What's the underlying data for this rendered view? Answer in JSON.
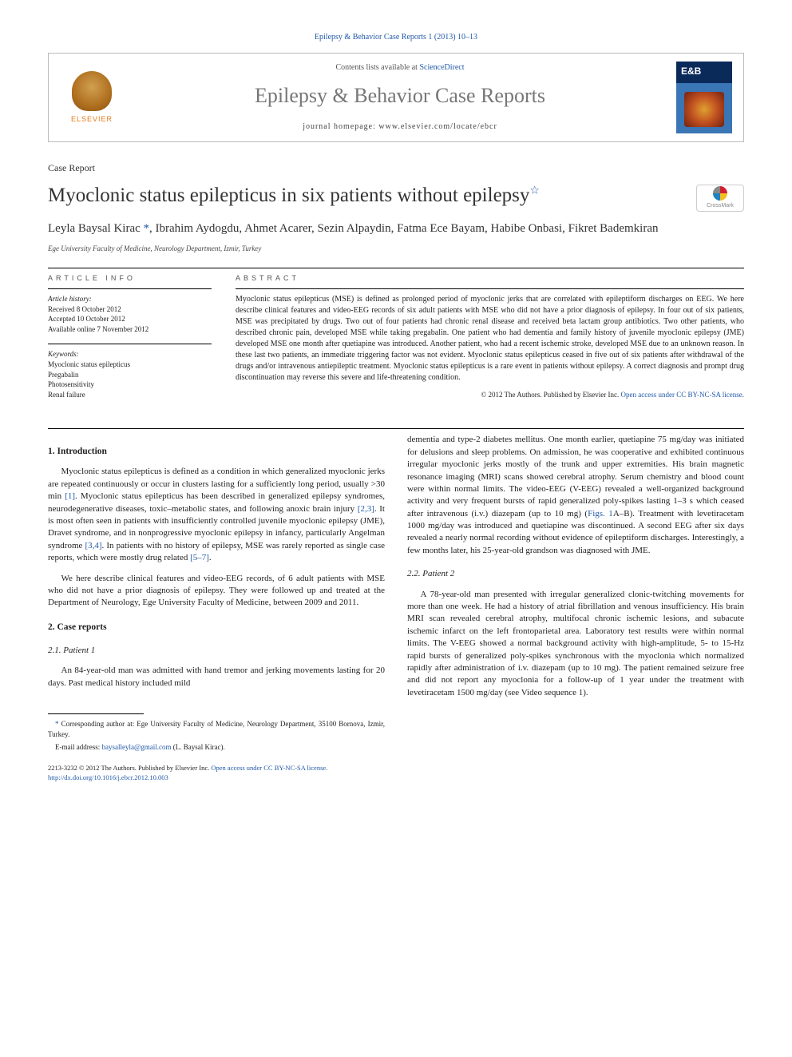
{
  "top_link": "Epilepsy & Behavior Case Reports 1 (2013) 10–13",
  "banner": {
    "contents_prefix": "Contents lists available at ",
    "contents_link": "ScienceDirect",
    "journal_name": "Epilepsy & Behavior Case Reports",
    "homepage_prefix": "journal homepage: ",
    "homepage": "www.elsevier.com/locate/ebcr",
    "elsevier": "ELSEVIER",
    "cover_badge": "E&B"
  },
  "article_type": "Case Report",
  "title": "Myoclonic status epilepticus in six patients without epilepsy",
  "crossmark": "CrossMark",
  "authors": "Leyla Baysal Kirac *, Ibrahim Aydogdu, Ahmet Acarer, Sezin Alpaydin, Fatma Ece Bayam, Habibe Onbasi, Fikret Bademkiran",
  "affiliation": "Ege University Faculty of Medicine, Neurology Department, Izmir, Turkey",
  "info": {
    "head": "ARTICLE INFO",
    "history_label": "Article history:",
    "received": "Received 8 October 2012",
    "accepted": "Accepted 10 October 2012",
    "online": "Available online 7 November 2012",
    "keywords_label": "Keywords:",
    "keywords": [
      "Myoclonic status epilepticus",
      "Pregabalin",
      "Photosensitivity",
      "Renal failure"
    ]
  },
  "abstract": {
    "head": "ABSTRACT",
    "text": "Myoclonic status epilepticus (MSE) is defined as prolonged period of myoclonic jerks that are correlated with epileptiform discharges on EEG. We here describe clinical features and video-EEG records of six adult patients with MSE who did not have a prior diagnosis of epilepsy. In four out of six patients, MSE was precipitated by drugs. Two out of four patients had chronic renal disease and received beta lactam group antibiotics. Two other patients, who described chronic pain, developed MSE while taking pregabalin. One patient who had dementia and family history of juvenile myoclonic epilepsy (JME) developed MSE one month after quetiapine was introduced. Another patient, who had a recent ischemic stroke, developed MSE due to an unknown reason. In these last two patients, an immediate triggering factor was not evident. Myoclonic status epilepticus ceased in five out of six patients after withdrawal of the drugs and/or intravenous antiepileptic treatment. Myoclonic status epilepticus is a rare event in patients without epilepsy. A correct diagnosis and prompt drug discontinuation may reverse this severe and life-threatening condition.",
    "copyright": "© 2012 The Authors. Published by Elsevier Inc. ",
    "cc": "Open access under CC BY-NC-SA license."
  },
  "sections": {
    "intro_head": "1. Introduction",
    "intro_p1": "Myoclonic status epilepticus is defined as a condition in which generalized myoclonic jerks are repeated continuously or occur in clusters lasting for a sufficiently long period, usually >30 min [1]. Myoclonic status epilepticus has been described in generalized epilepsy syndromes, neurodegenerative diseases, toxic–metabolic states, and following anoxic brain injury [2,3]. It is most often seen in patients with insufficiently controlled juvenile myoclonic epilepsy (JME), Dravet syndrome, and in nonprogressive myoclonic epilepsy in infancy, particularly Angelman syndrome [3,4]. In patients with no history of epilepsy, MSE was rarely reported as single case reports, which were mostly drug related [5–7].",
    "intro_p2": "We here describe clinical features and video-EEG records, of 6 adult patients with MSE who did not have a prior diagnosis of epilepsy. They were followed up and treated at the Department of Neurology, Ege University Faculty of Medicine, between 2009 and 2011.",
    "cases_head": "2. Case reports",
    "p1_head": "2.1. Patient 1",
    "p1_text": "An 84-year-old man was admitted with hand tremor and jerking movements lasting for 20 days. Past medical history included mild",
    "p1_cont": "dementia and type-2 diabetes mellitus. One month earlier, quetiapine 75 mg/day was initiated for delusions and sleep problems. On admission, he was cooperative and exhibited continuous irregular myoclonic jerks mostly of the trunk and upper extremities. His brain magnetic resonance imaging (MRI) scans showed cerebral atrophy. Serum chemistry and blood count were within normal limits. The video-EEG (V-EEG) revealed a well-organized background activity and very frequent bursts of rapid generalized poly-spikes lasting 1–3 s which ceased after intravenous (i.v.) diazepam (up to 10 mg) (Figs. 1A–B). Treatment with levetiracetam 1000 mg/day was introduced and quetiapine was discontinued. A second EEG after six days revealed a nearly normal recording without evidence of epileptiform discharges. Interestingly, a few months later, his 25-year-old grandson was diagnosed with JME.",
    "p2_head": "2.2. Patient 2",
    "p2_text": "A 78-year-old man presented with irregular generalized clonic-twitching movements for more than one week. He had a history of atrial fibrillation and venous insufficiency. His brain MRI scan revealed cerebral atrophy, multifocal chronic ischemic lesions, and subacute ischemic infarct on the left frontoparietal area. Laboratory test results were within normal limits. The V-EEG showed a normal background activity with high-amplitude, 5- to 15-Hz rapid bursts of generalized poly-spikes synchronous with the myoclonia which normalized rapidly after administration of i.v. diazepam (up to 10 mg). The patient remained seizure free and did not report any myoclonia for a follow-up of 1 year under the treatment with levetiracetam 1500 mg/day (see Video sequence 1)."
  },
  "footnotes": {
    "corr": "* Corresponding author at: Ege University Faculty of Medicine, Neurology Department, 35100 Bornova, Izmir, Turkey.",
    "email_label": "E-mail address: ",
    "email": "baysalleyla@gmail.com",
    "email_suffix": " (L. Baysal Kirac)."
  },
  "bottom": {
    "line1": "2213-3232 © 2012 The Authors. Published by Elsevier Inc. ",
    "cc": "Open access under CC BY-NC-SA license.",
    "doi": "http://dx.doi.org/10.1016/j.ebcr.2012.10.003"
  },
  "colors": {
    "link": "#2058a8",
    "elsevier_orange": "#e67817",
    "text": "#222222",
    "muted": "#777777"
  }
}
